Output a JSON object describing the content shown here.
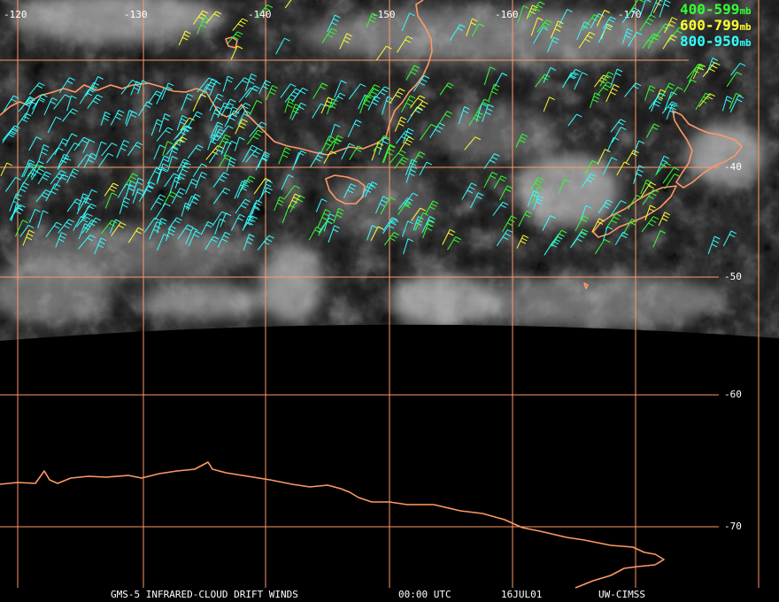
{
  "title": "GMS-5 INFRARED-CLOUD DRIFT WINDS",
  "time": "00:00 UTC",
  "date": "16JUL01",
  "source": "UW-CIMSS",
  "longitude_labels": [
    "-120",
    "-130",
    "-140",
    "-150",
    "-160",
    "-170"
  ],
  "latitude_labels": [
    "-40",
    "-50",
    "-60",
    "-70"
  ],
  "legend": [
    {
      "range": "400-599",
      "unit": "mb",
      "color": "#33ff33"
    },
    {
      "range": "600-799",
      "unit": "mb",
      "color": "#ffff33"
    },
    {
      "range": "800-950",
      "unit": "mb",
      "color": "#33ffff"
    }
  ],
  "colors": {
    "gridline": "#ff9966",
    "coastline": "#ff9966",
    "background": "#000000",
    "cloud": "#c8c8c8"
  }
}
